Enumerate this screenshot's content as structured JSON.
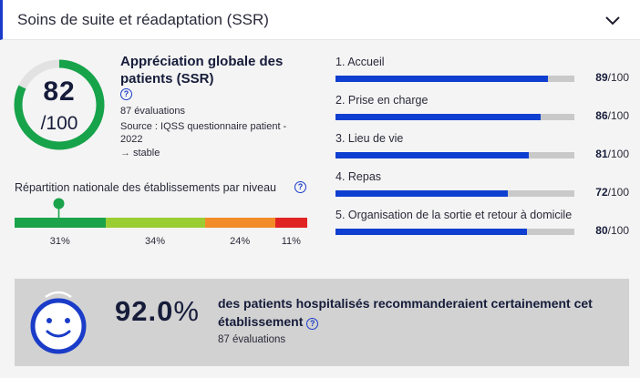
{
  "header": {
    "title": "Soins de suite et réadaptation (SSR)"
  },
  "score": {
    "value": "82",
    "denominator": "/100",
    "fraction": 0.82,
    "color": "#16a34a"
  },
  "overview": {
    "title": "Appréciation globale des patients (SSR)",
    "help_symbol": "?",
    "evaluations": "87 évaluations",
    "source": "Source : IQSS questionnaire patient - 2022",
    "trend_arrow": "→",
    "trend": "stable"
  },
  "repartition": {
    "label": "Répartition nationale des établissements par niveau",
    "help_symbol": "?",
    "segments": [
      {
        "pct": "31%",
        "value": 31,
        "color": "#1aa34a"
      },
      {
        "pct": "34%",
        "value": 34,
        "color": "#9acd32"
      },
      {
        "pct": "24%",
        "value": 24,
        "color": "#f28c28"
      },
      {
        "pct": "11%",
        "value": 11,
        "color": "#e02424"
      }
    ]
  },
  "criteria": [
    {
      "label": "1. Accueil",
      "score": "89",
      "max": "/100",
      "value": 89
    },
    {
      "label": "2. Prise en charge",
      "score": "86",
      "max": "/100",
      "value": 86
    },
    {
      "label": "3. Lieu de vie",
      "score": "81",
      "max": "/100",
      "value": 81
    },
    {
      "label": "4. Repas",
      "score": "72",
      "max": "/100",
      "value": 72
    },
    {
      "label": "5. Organisation de la sortie et retour à domicile",
      "score": "80",
      "max": "/100",
      "value": 80
    }
  ],
  "recommendation": {
    "value": "92.0",
    "sign": "%",
    "text": "des patients hospitalisés recommanderaient certainement cet établissement",
    "help_symbol": "?",
    "evaluations": "87 évaluations",
    "icon": "smiley-icon",
    "icon_color": "#1a3cc8"
  }
}
